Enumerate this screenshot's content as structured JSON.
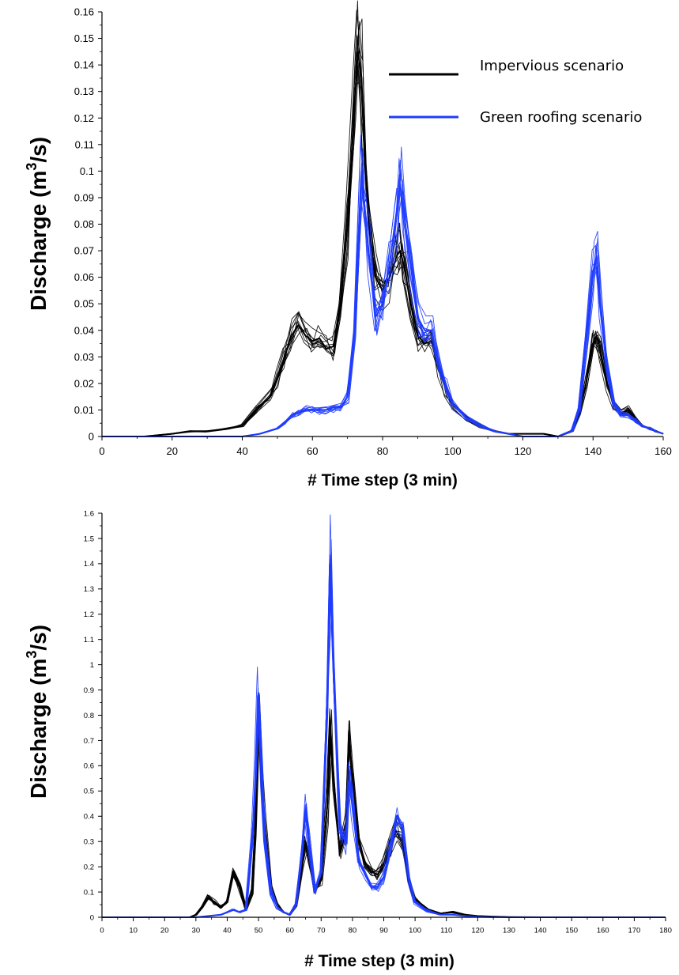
{
  "colors": {
    "impervious": "#000000",
    "green": "#1f3cff"
  },
  "legend": {
    "items": [
      {
        "label": "Impervious scenario",
        "color": "#000000"
      },
      {
        "label": "Green roofing scenario",
        "color": "#1f3cff"
      }
    ]
  },
  "chart_data": [
    {
      "type": "line",
      "title": "",
      "xlabel": "# Time step (3 min)",
      "ylabel": "Discharge (m",
      "ylabel_sup": "3",
      "ylabel_end": "/s)",
      "xlim": [
        0,
        160
      ],
      "ylim": [
        0,
        0.16
      ],
      "xticks": [
        0,
        20,
        40,
        60,
        80,
        100,
        120,
        140,
        160
      ],
      "xtick_labels": [
        "0",
        "20",
        "40",
        "60",
        "80",
        "100",
        "120",
        "140",
        "160"
      ],
      "yticks": [
        0,
        0.01,
        0.02,
        0.03,
        0.04,
        0.05,
        0.06,
        0.07,
        0.08,
        0.09,
        0.1,
        0.11,
        0.12,
        0.13,
        0.14,
        0.15,
        0.16
      ],
      "ytick_labels": [
        "0",
        "0.01",
        "0.02",
        "0.03",
        "0.04",
        "0.05",
        "0.06",
        "0.07",
        "0.08",
        "0.09",
        "0.1",
        "0.11",
        "0.12",
        "0.13",
        "0.14",
        "0.15",
        "0.16"
      ],
      "grid": false,
      "legend_position": "top-right",
      "series": [
        {
          "name": "Impervious scenario",
          "color": "#000000",
          "x": [
            0,
            12,
            20,
            25,
            30,
            36,
            40,
            44,
            48,
            50,
            52,
            54,
            56,
            58,
            60,
            62,
            64,
            66,
            68,
            70,
            72,
            73,
            74,
            75,
            76,
            78,
            80,
            82,
            84,
            85,
            86,
            88,
            90,
            92,
            94,
            96,
            98,
            100,
            104,
            108,
            112,
            116,
            120,
            126,
            130,
            134,
            136,
            138,
            140,
            141,
            142,
            144,
            146,
            148,
            150,
            152,
            154,
            156,
            158,
            160
          ],
          "y": [
            0,
            0,
            0.001,
            0.002,
            0.002,
            0.003,
            0.004,
            0.01,
            0.015,
            0.022,
            0.03,
            0.038,
            0.042,
            0.038,
            0.036,
            0.037,
            0.033,
            0.034,
            0.05,
            0.08,
            0.125,
            0.145,
            0.135,
            0.1,
            0.08,
            0.06,
            0.055,
            0.06,
            0.068,
            0.07,
            0.065,
            0.05,
            0.038,
            0.035,
            0.036,
            0.025,
            0.018,
            0.012,
            0.007,
            0.004,
            0.002,
            0.001,
            0.001,
            0.001,
            0,
            0.002,
            0.008,
            0.02,
            0.035,
            0.038,
            0.033,
            0.02,
            0.012,
            0.009,
            0.01,
            0.007,
            0.004,
            0.003,
            0.002,
            0.001
          ]
        },
        {
          "name": "Green roofing scenario",
          "color": "#1f3cff",
          "x": [
            0,
            30,
            40,
            45,
            50,
            52,
            54,
            56,
            58,
            60,
            62,
            64,
            66,
            68,
            70,
            72,
            74,
            76,
            78,
            80,
            82,
            84,
            85,
            86,
            88,
            90,
            92,
            94,
            96,
            98,
            100,
            104,
            108,
            112,
            116,
            120,
            126,
            130,
            134,
            136,
            138,
            140,
            141,
            142,
            144,
            146,
            148,
            150,
            152,
            154,
            156,
            158,
            160
          ],
          "y": [
            0,
            0,
            0,
            0.001,
            0.003,
            0.005,
            0.008,
            0.009,
            0.01,
            0.01,
            0.01,
            0.01,
            0.011,
            0.011,
            0.015,
            0.04,
            0.1,
            0.07,
            0.045,
            0.05,
            0.065,
            0.085,
            0.095,
            0.085,
            0.065,
            0.045,
            0.04,
            0.04,
            0.028,
            0.02,
            0.012,
            0.007,
            0.004,
            0.002,
            0.001,
            0,
            0,
            0,
            0.002,
            0.01,
            0.035,
            0.062,
            0.068,
            0.05,
            0.025,
            0.012,
            0.008,
            0.008,
            0.006,
            0.004,
            0.003,
            0.002,
            0.001
          ]
        }
      ]
    },
    {
      "type": "line",
      "title": "",
      "xlabel": "# Time step (3 min)",
      "ylabel": "Discharge (m",
      "ylabel_sup": "3",
      "ylabel_end": "/s)",
      "xlim": [
        0,
        180
      ],
      "ylim": [
        0,
        1.6
      ],
      "xticks": [
        0,
        10,
        20,
        30,
        40,
        50,
        60,
        70,
        80,
        90,
        100,
        110,
        120,
        130,
        140,
        150,
        160,
        170,
        180
      ],
      "xtick_labels": [
        "0",
        "10",
        "20",
        "30",
        "40",
        "50",
        "60",
        "70",
        "80",
        "90",
        "100",
        "110",
        "120",
        "130",
        "140",
        "150",
        "160",
        "170",
        "180"
      ],
      "yticks": [
        0,
        0.1,
        0.2,
        0.3,
        0.4,
        0.5,
        0.6,
        0.7,
        0.8,
        0.9,
        1,
        1.1,
        1.2,
        1.3,
        1.4,
        1.5,
        1.6
      ],
      "ytick_labels": [
        "0",
        "0.1",
        "0.2",
        "0.3",
        "0.4",
        "0.5",
        "0.6",
        "0.7",
        "0.8",
        "0.9",
        "1",
        "1.1",
        "1.2",
        "1.3",
        "1.4",
        "1.5",
        "1.6"
      ],
      "grid": false,
      "series": [
        {
          "name": "Impervious scenario",
          "color": "#000000",
          "x": [
            0,
            28,
            30,
            32,
            34,
            36,
            38,
            40,
            42,
            44,
            46,
            48,
            49,
            50,
            51,
            52,
            54,
            56,
            58,
            60,
            62,
            64,
            65,
            66,
            68,
            70,
            72,
            73,
            74,
            76,
            78,
            79,
            80,
            82,
            84,
            86,
            88,
            90,
            92,
            94,
            96,
            98,
            100,
            104,
            108,
            112,
            116,
            120,
            124,
            130,
            140,
            150,
            180
          ],
          "y": [
            0,
            0,
            0.01,
            0.04,
            0.08,
            0.06,
            0.04,
            0.06,
            0.18,
            0.12,
            0.03,
            0.1,
            0.35,
            0.82,
            0.6,
            0.35,
            0.12,
            0.05,
            0.02,
            0.01,
            0.05,
            0.2,
            0.3,
            0.25,
            0.1,
            0.15,
            0.45,
            0.72,
            0.55,
            0.25,
            0.35,
            0.7,
            0.55,
            0.3,
            0.22,
            0.18,
            0.17,
            0.2,
            0.28,
            0.34,
            0.3,
            0.15,
            0.07,
            0.03,
            0.015,
            0.02,
            0.01,
            0.005,
            0.003,
            0.001,
            0,
            0,
            0
          ]
        },
        {
          "name": "Green roofing scenario",
          "color": "#1f3cff",
          "x": [
            0,
            30,
            34,
            38,
            40,
            42,
            44,
            46,
            48,
            49,
            50,
            51,
            52,
            54,
            56,
            58,
            60,
            62,
            64,
            65,
            66,
            68,
            70,
            72,
            73,
            74,
            76,
            78,
            79,
            80,
            82,
            84,
            86,
            88,
            90,
            92,
            94,
            96,
            98,
            100,
            104,
            108,
            112,
            116,
            120,
            124,
            130,
            140,
            150,
            180
          ],
          "y": [
            0,
            0,
            0.005,
            0.01,
            0.02,
            0.03,
            0.02,
            0.03,
            0.3,
            0.55,
            0.88,
            0.6,
            0.3,
            0.1,
            0.04,
            0.02,
            0.01,
            0.05,
            0.28,
            0.42,
            0.3,
            0.1,
            0.18,
            0.9,
            1.4,
            0.95,
            0.35,
            0.3,
            0.55,
            0.45,
            0.22,
            0.17,
            0.12,
            0.12,
            0.16,
            0.27,
            0.4,
            0.35,
            0.15,
            0.06,
            0.025,
            0.01,
            0.01,
            0.005,
            0.002,
            0.001,
            0,
            0,
            0,
            0
          ]
        }
      ]
    }
  ]
}
